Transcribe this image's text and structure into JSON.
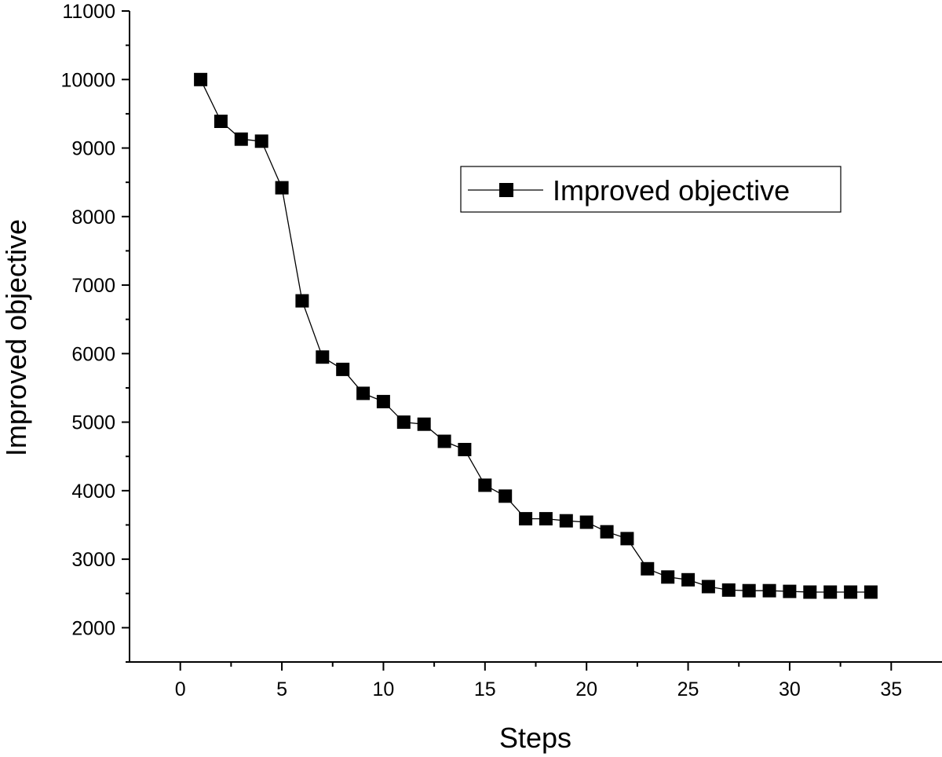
{
  "chart_data": {
    "type": "line",
    "xlabel": "Steps",
    "ylabel": "Improved objective",
    "xlim": [
      -2.5,
      37.5
    ],
    "ylim": [
      1500,
      11000
    ],
    "x_ticks": [
      0,
      5,
      10,
      15,
      20,
      25,
      30,
      35
    ],
    "y_ticks": [
      2000,
      3000,
      4000,
      5000,
      6000,
      7000,
      8000,
      9000,
      10000,
      11000
    ],
    "grid": false,
    "legend_position": "top-right",
    "marker": "square",
    "series": [
      {
        "name": "Improved objective",
        "color": "#000000",
        "x": [
          1,
          2,
          3,
          4,
          5,
          6,
          7,
          8,
          9,
          10,
          11,
          12,
          13,
          14,
          15,
          16,
          17,
          18,
          19,
          20,
          21,
          22,
          23,
          24,
          25,
          26,
          27,
          28,
          29,
          30,
          31,
          32,
          33,
          34
        ],
        "values": [
          10000,
          9390,
          9130,
          9100,
          8420,
          6770,
          5950,
          5770,
          5420,
          5300,
          5000,
          4970,
          4720,
          4600,
          4080,
          3920,
          3590,
          3590,
          3560,
          3540,
          3400,
          3300,
          2860,
          2740,
          2700,
          2600,
          2550,
          2540,
          2540,
          2530,
          2520,
          2520,
          2520,
          2520
        ]
      }
    ]
  }
}
